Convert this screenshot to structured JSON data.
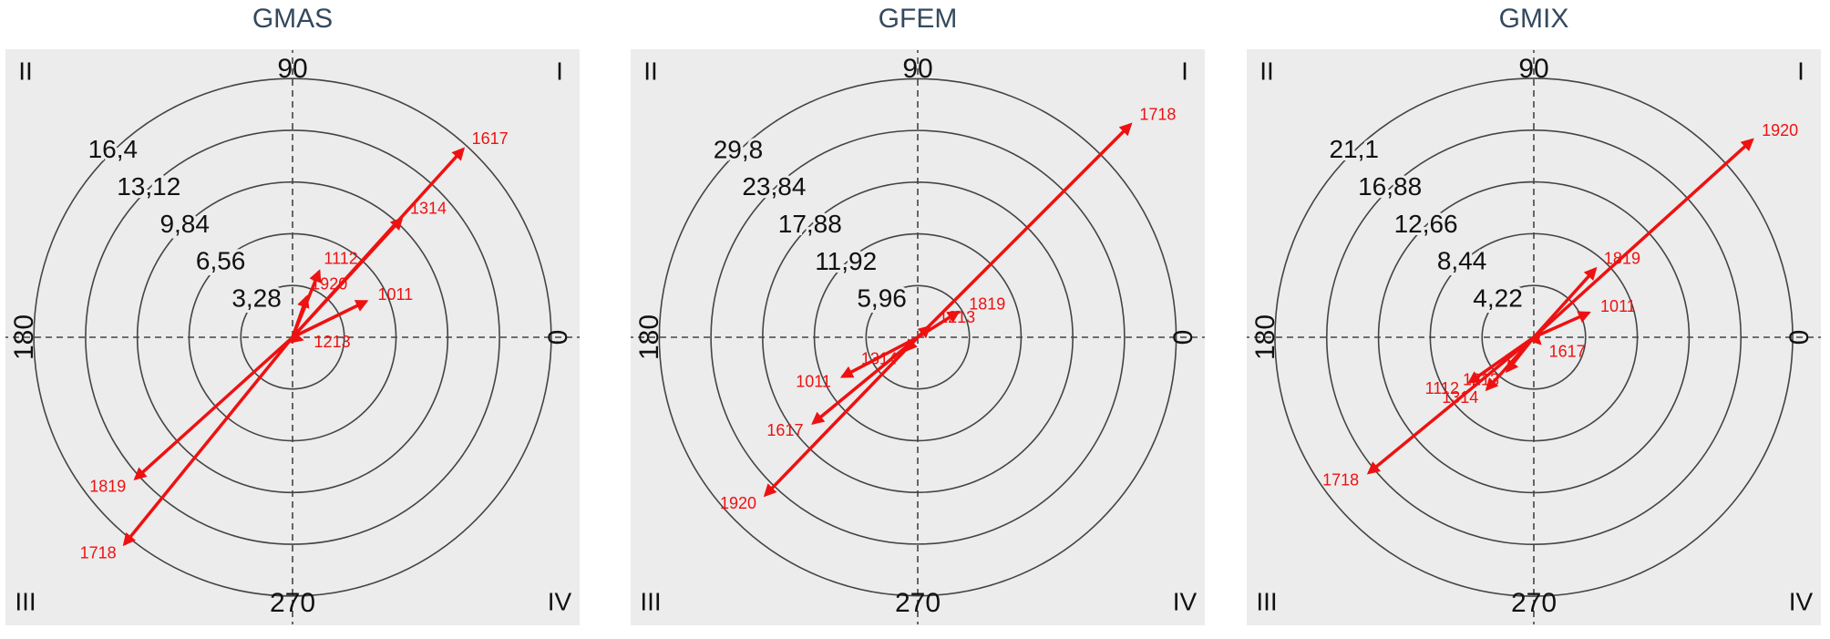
{
  "chart_data": [
    {
      "type": "polar-vector",
      "title": "GMAS",
      "color": "#ee1111",
      "labels": [
        "1617",
        "1314",
        "1112",
        "1920",
        "1011",
        "1213",
        "1819",
        "1718"
      ],
      "theta": [
        47.8,
        47.4,
        68,
        70.6,
        26,
        345,
        222,
        230.9
      ],
      "r": [
        16.1,
        10.2,
        4.5,
        2.7,
        5.2,
        0.6,
        13.4,
        16.9
      ],
      "rlim": [
        0,
        18.2
      ],
      "rticks": [
        {
          "value": 3.28,
          "label": "3,28"
        },
        {
          "value": 6.56,
          "label": "6,56"
        },
        {
          "value": 9.84,
          "label": "9,84"
        },
        {
          "value": 13.12,
          "label": "13,12"
        },
        {
          "value": 16.4,
          "label": "16,4"
        }
      ],
      "thetaticks": [
        0,
        90,
        180,
        270
      ],
      "quadrant_labels": [
        "I",
        "II",
        "III",
        "IV"
      ]
    },
    {
      "type": "polar-vector",
      "title": "GFEM",
      "color": "#ee1111",
      "labels": [
        "1718",
        "1819",
        "1213",
        "1011",
        "1314",
        "1617",
        "1920"
      ],
      "theta": [
        45,
        32,
        42,
        207.6,
        228,
        219.4,
        226
      ],
      "r": [
        34.7,
        5.5,
        1.8,
        9.8,
        2.0,
        15.6,
        25.3
      ],
      "rlim": [
        0,
        33.1
      ],
      "rticks": [
        {
          "value": 5.96,
          "label": "5,96"
        },
        {
          "value": 11.92,
          "label": "11,92"
        },
        {
          "value": 17.88,
          "label": "17,88"
        },
        {
          "value": 23.84,
          "label": "23,84"
        },
        {
          "value": 29.8,
          "label": "29,8"
        }
      ],
      "thetaticks": [
        0,
        90,
        180,
        270
      ],
      "quadrant_labels": [
        "I",
        "II",
        "III",
        "IV"
      ]
    },
    {
      "type": "polar-vector",
      "title": "GMIX",
      "color": "#ee1111",
      "labels": [
        "1920",
        "1819",
        "1011",
        "1617",
        "1112",
        "1213",
        "1314",
        "1718"
      ],
      "theta": [
        42.1,
        48,
        24,
        315,
        215,
        231.6,
        228,
        219.4
      ],
      "r": [
        24.0,
        7.5,
        4.9,
        0.7,
        6.4,
        3.5,
        5.7,
        17.4
      ],
      "rlim": [
        0,
        23.4
      ],
      "rticks": [
        {
          "value": 4.22,
          "label": "4,22"
        },
        {
          "value": 8.44,
          "label": "8,44"
        },
        {
          "value": 12.66,
          "label": "12,66"
        },
        {
          "value": 16.88,
          "label": "16,88"
        },
        {
          "value": 21.1,
          "label": "21,1"
        }
      ],
      "thetaticks": [
        0,
        90,
        180,
        270
      ],
      "quadrant_labels": [
        "I",
        "II",
        "III",
        "IV"
      ]
    }
  ]
}
